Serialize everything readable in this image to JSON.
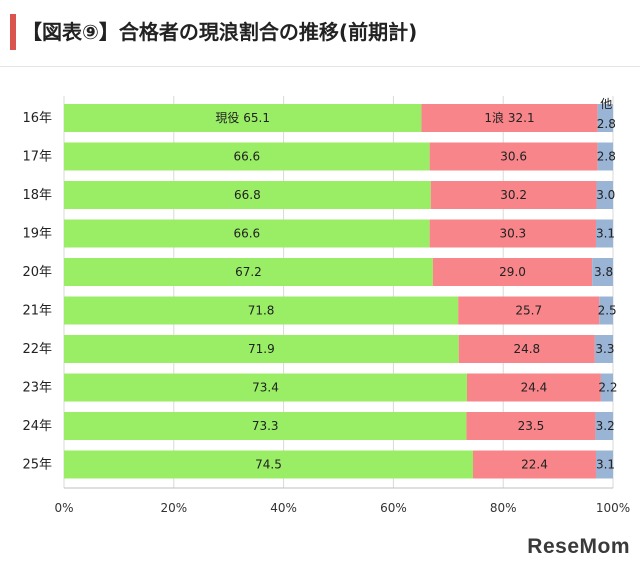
{
  "header": {
    "title": "【図表⑨】合格者の現浪割合の推移(前期計)"
  },
  "chart_data": {
    "type": "bar",
    "stacked": "percent",
    "orientation": "horizontal",
    "categories": [
      "16年",
      "17年",
      "18年",
      "19年",
      "20年",
      "21年",
      "22年",
      "23年",
      "24年",
      "25年"
    ],
    "series": [
      {
        "name": "現役",
        "color": "#99ee66",
        "values": [
          65.1,
          66.6,
          66.8,
          66.6,
          67.2,
          71.8,
          71.9,
          73.4,
          73.3,
          74.5
        ]
      },
      {
        "name": "1浪",
        "color": "#f7858a",
        "values": [
          32.1,
          30.6,
          30.2,
          30.3,
          29.0,
          25.7,
          24.8,
          24.4,
          23.5,
          22.4
        ]
      },
      {
        "name": "他",
        "color": "#9ab4d6",
        "values": [
          2.8,
          2.8,
          3.0,
          3.1,
          3.8,
          2.5,
          3.3,
          2.2,
          3.2,
          3.1
        ]
      }
    ],
    "x_ticks": [
      "0%",
      "20%",
      "40%",
      "60%",
      "80%",
      "100%"
    ],
    "xlim": [
      0,
      100
    ],
    "grid": true,
    "first_row_labels": {
      "现役": "現役",
      "ichiro": "1浪",
      "other": "他"
    }
  },
  "footer": {
    "logo": "ReseMom"
  }
}
